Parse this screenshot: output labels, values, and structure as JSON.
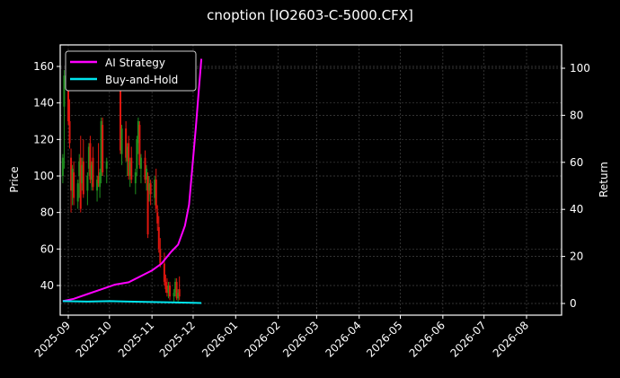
{
  "chart_data": {
    "type": "candlestick+line",
    "title": "cnoption [IO2603-C-5000.CFX]",
    "xlabel": "",
    "ylabel": "Price",
    "y2label": "Return",
    "ylim": [
      26,
      172
    ],
    "y2lim": [
      -5,
      105
    ],
    "yticks": [
      40,
      60,
      80,
      100,
      120,
      140,
      160
    ],
    "y2ticks": [
      0,
      20,
      40,
      60,
      80,
      100
    ],
    "xticks": [
      "2025-09",
      "2025-10",
      "2025-11",
      "2025-12",
      "2026-01",
      "2026-02",
      "2026-03",
      "2026-04",
      "2026-05",
      "2026-06",
      "2026-07",
      "2026-08"
    ],
    "grid": true,
    "legend_position": "upper left",
    "legend": [
      "AI Strategy",
      "Buy-and-Hold"
    ],
    "colors": {
      "background": "#000000",
      "ai_strategy": "#ff00ff",
      "buy_and_hold": "#00e5ee",
      "up_candle": "#1f8f1f",
      "down_candle": "#e0160f",
      "axes": "#ffffff",
      "grid": "#444444"
    },
    "candles_note": "Daily OHLC bars from ~2025-08-28 to ~2025-12-05; price falls from ~150 to ~35",
    "candles": [
      {
        "x": "2025-08-28",
        "o": 100,
        "h": 112,
        "l": 96,
        "c": 110
      },
      {
        "x": "2025-08-29",
        "o": 138,
        "h": 158,
        "l": 104,
        "c": 155
      },
      {
        "x": "2025-09-01",
        "o": 152,
        "h": 156,
        "l": 128,
        "c": 130
      },
      {
        "x": "2025-09-02",
        "o": 130,
        "h": 142,
        "l": 115,
        "c": 118
      },
      {
        "x": "2025-09-03",
        "o": 110,
        "h": 115,
        "l": 80,
        "c": 92
      },
      {
        "x": "2025-09-04",
        "o": 92,
        "h": 106,
        "l": 84,
        "c": 104
      },
      {
        "x": "2025-09-05",
        "o": 102,
        "h": 108,
        "l": 84,
        "c": 88
      },
      {
        "x": "2025-09-08",
        "o": 86,
        "h": 98,
        "l": 82,
        "c": 96
      },
      {
        "x": "2025-09-09",
        "o": 100,
        "h": 112,
        "l": 88,
        "c": 108
      },
      {
        "x": "2025-09-10",
        "o": 110,
        "h": 122,
        "l": 80,
        "c": 82
      },
      {
        "x": "2025-09-11",
        "o": 96,
        "h": 110,
        "l": 92,
        "c": 106
      },
      {
        "x": "2025-09-12",
        "o": 108,
        "h": 120,
        "l": 88,
        "c": 90
      },
      {
        "x": "2025-09-15",
        "o": 92,
        "h": 102,
        "l": 84,
        "c": 100
      },
      {
        "x": "2025-09-16",
        "o": 104,
        "h": 118,
        "l": 100,
        "c": 116
      },
      {
        "x": "2025-09-17",
        "o": 118,
        "h": 122,
        "l": 96,
        "c": 98
      },
      {
        "x": "2025-09-18",
        "o": 98,
        "h": 108,
        "l": 92,
        "c": 106
      },
      {
        "x": "2025-09-19",
        "o": 110,
        "h": 116,
        "l": 92,
        "c": 94
      },
      {
        "x": "2025-09-22",
        "o": 92,
        "h": 100,
        "l": 86,
        "c": 98
      },
      {
        "x": "2025-09-23",
        "o": 100,
        "h": 118,
        "l": 94,
        "c": 96
      },
      {
        "x": "2025-09-24",
        "o": 94,
        "h": 104,
        "l": 88,
        "c": 102
      },
      {
        "x": "2025-09-25",
        "o": 100,
        "h": 132,
        "l": 96,
        "c": 130
      },
      {
        "x": "2025-09-26",
        "o": 128,
        "h": 132,
        "l": 100,
        "c": 102
      },
      {
        "x": "2025-09-29",
        "o": 104,
        "h": 110,
        "l": 96,
        "c": 108
      },
      {
        "x": "2025-10-09",
        "o": 150,
        "h": 152,
        "l": 112,
        "c": 114
      },
      {
        "x": "2025-10-10",
        "o": 112,
        "h": 128,
        "l": 106,
        "c": 126
      },
      {
        "x": "2025-10-13",
        "o": 126,
        "h": 130,
        "l": 108,
        "c": 110
      },
      {
        "x": "2025-10-14",
        "o": 108,
        "h": 118,
        "l": 100,
        "c": 116
      },
      {
        "x": "2025-10-15",
        "o": 118,
        "h": 122,
        "l": 98,
        "c": 100
      },
      {
        "x": "2025-10-16",
        "o": 100,
        "h": 110,
        "l": 94,
        "c": 108
      },
      {
        "x": "2025-10-17",
        "o": 110,
        "h": 116,
        "l": 96,
        "c": 98
      },
      {
        "x": "2025-10-20",
        "o": 96,
        "h": 104,
        "l": 90,
        "c": 102
      },
      {
        "x": "2025-10-21",
        "o": 104,
        "h": 122,
        "l": 100,
        "c": 120
      },
      {
        "x": "2025-10-22",
        "o": 118,
        "h": 132,
        "l": 112,
        "c": 130
      },
      {
        "x": "2025-10-23",
        "o": 128,
        "h": 130,
        "l": 104,
        "c": 106
      },
      {
        "x": "2025-10-24",
        "o": 104,
        "h": 112,
        "l": 96,
        "c": 110
      },
      {
        "x": "2025-10-27",
        "o": 110,
        "h": 114,
        "l": 96,
        "c": 98
      },
      {
        "x": "2025-10-28",
        "o": 98,
        "h": 106,
        "l": 92,
        "c": 104
      },
      {
        "x": "2025-10-29",
        "o": 100,
        "h": 102,
        "l": 66,
        "c": 68
      },
      {
        "x": "2025-10-30",
        "o": 92,
        "h": 100,
        "l": 86,
        "c": 96
      },
      {
        "x": "2025-10-31",
        "o": 96,
        "h": 98,
        "l": 84,
        "c": 90
      },
      {
        "x": "2025-11-03",
        "o": 88,
        "h": 100,
        "l": 84,
        "c": 98
      },
      {
        "x": "2025-11-04",
        "o": 98,
        "h": 104,
        "l": 80,
        "c": 82
      },
      {
        "x": "2025-11-05",
        "o": 80,
        "h": 84,
        "l": 70,
        "c": 74
      },
      {
        "x": "2025-11-06",
        "o": 72,
        "h": 78,
        "l": 58,
        "c": 60
      },
      {
        "x": "2025-11-07",
        "o": 60,
        "h": 66,
        "l": 50,
        "c": 52
      },
      {
        "x": "2025-11-10",
        "o": 52,
        "h": 58,
        "l": 40,
        "c": 42
      },
      {
        "x": "2025-11-11",
        "o": 42,
        "h": 46,
        "l": 36,
        "c": 38
      },
      {
        "x": "2025-11-12",
        "o": 40,
        "h": 44,
        "l": 34,
        "c": 36
      },
      {
        "x": "2025-11-13",
        "o": 36,
        "h": 42,
        "l": 33,
        "c": 40
      },
      {
        "x": "2025-11-14",
        "o": 40,
        "h": 42,
        "l": 32,
        "c": 34
      },
      {
        "x": "2025-11-17",
        "o": 34,
        "h": 38,
        "l": 31,
        "c": 36
      },
      {
        "x": "2025-11-18",
        "o": 36,
        "h": 44,
        "l": 34,
        "c": 42
      },
      {
        "x": "2025-11-19",
        "o": 42,
        "h": 44,
        "l": 32,
        "c": 33
      },
      {
        "x": "2025-11-20",
        "o": 33,
        "h": 38,
        "l": 30,
        "c": 36
      },
      {
        "x": "2025-11-21",
        "o": 38,
        "h": 45,
        "l": 32,
        "c": 34
      }
    ],
    "series": [
      {
        "name": "AI Strategy",
        "axis": "right",
        "color": "#ff00ff",
        "points": [
          [
            "2025-08-28",
            1
          ],
          [
            "2025-09-05",
            2
          ],
          [
            "2025-09-15",
            4
          ],
          [
            "2025-09-25",
            6
          ],
          [
            "2025-10-05",
            8
          ],
          [
            "2025-10-15",
            9
          ],
          [
            "2025-10-25",
            12
          ],
          [
            "2025-11-01",
            14
          ],
          [
            "2025-11-08",
            17
          ],
          [
            "2025-11-15",
            22
          ],
          [
            "2025-11-20",
            25
          ],
          [
            "2025-11-25",
            33
          ],
          [
            "2025-11-28",
            42
          ],
          [
            "2025-12-01",
            62
          ],
          [
            "2025-12-03",
            75
          ],
          [
            "2025-12-05",
            90
          ],
          [
            "2025-12-07",
            104
          ]
        ]
      },
      {
        "name": "Buy-and-Hold",
        "axis": "right",
        "color": "#00e5ee",
        "points": [
          [
            "2025-08-28",
            1
          ],
          [
            "2025-09-15",
            0.8
          ],
          [
            "2025-10-01",
            1.0
          ],
          [
            "2025-10-15",
            0.8
          ],
          [
            "2025-11-01",
            0.6
          ],
          [
            "2025-11-15",
            0.5
          ],
          [
            "2025-12-01",
            0.3
          ],
          [
            "2025-12-07",
            0.2
          ]
        ]
      }
    ]
  }
}
